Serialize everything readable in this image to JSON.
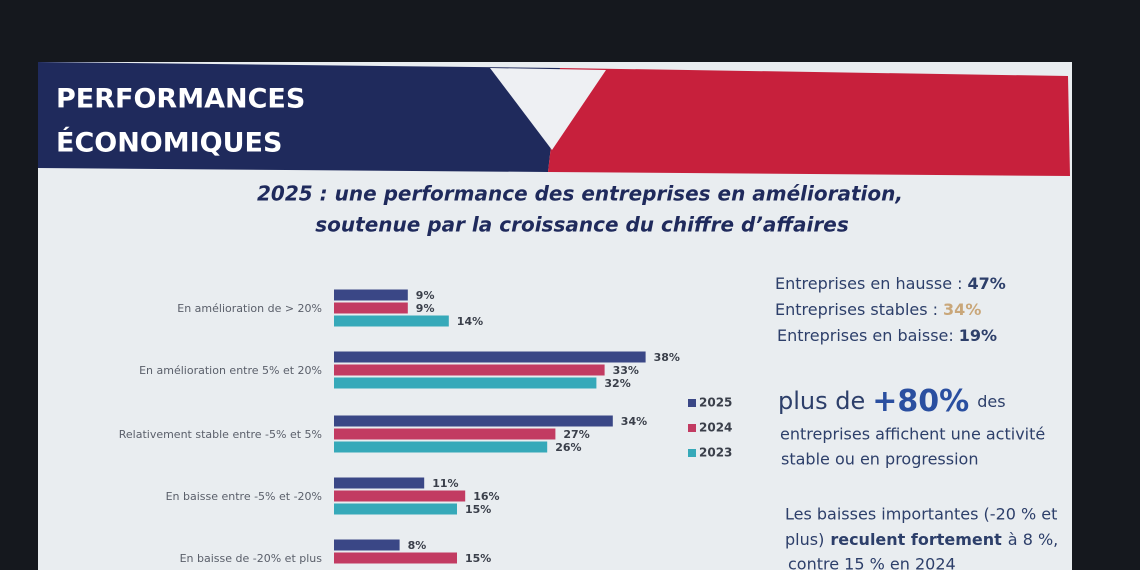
{
  "header": {
    "line1": "PERFORMANCES",
    "line2": "ÉCONOMIQUES"
  },
  "chart_data": {
    "type": "bar",
    "orientation": "horizontal",
    "title": "2025 : une performance des entreprises en amélioration,",
    "subtitle": "soutenue par la croissance du chiffre d’affaires",
    "categories": [
      "En amélioration de > 20%",
      "En amélioration entre 5% et 20%",
      "Relativement stable entre -5% et 5%",
      "En baisse entre -5% et -20%",
      "En baisse de -20% et plus"
    ],
    "series": [
      {
        "name": "2025",
        "color": "#3a4786",
        "values": [
          9,
          38,
          34,
          11,
          8
        ],
        "value_labels": [
          "9%",
          "38%",
          "34%",
          "11%",
          "8%"
        ]
      },
      {
        "name": "2024",
        "color": "#c23b62",
        "values": [
          9,
          33,
          27,
          16,
          15
        ],
        "value_labels": [
          "9%",
          "33%",
          "27%",
          "16%",
          "15%"
        ]
      },
      {
        "name": "2023",
        "color": "#36a9b9",
        "values": [
          14,
          32,
          26,
          15,
          null
        ],
        "value_labels": [
          "14%",
          "32%",
          "26%",
          "15%",
          null
        ]
      }
    ]
  },
  "summary": [
    {
      "label": "Entreprises en hausse :",
      "value": "47%"
    },
    {
      "label": "Entreprises stables :",
      "value": "34%"
    },
    {
      "label": "Entreprises en baisse:",
      "value": "19%"
    }
  ],
  "highlight": {
    "prefix": "plus de",
    "figure": "+80%",
    "suffix": "des",
    "line2": "entreprises affichent une activité",
    "line3": "stable ou en progression"
  },
  "note": {
    "line1": "Les baisses importantes (-20 % et",
    "line2_a": "plus)",
    "line2_b": "reculent fortement",
    "line2_c": "à 8 %,",
    "line3": "contre 15 % en 2024"
  }
}
